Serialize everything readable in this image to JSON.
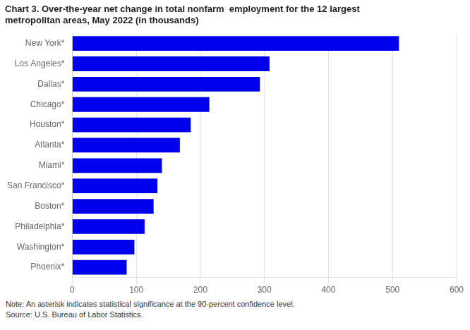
{
  "chart_data": {
    "type": "bar",
    "orientation": "horizontal",
    "title": [
      "Chart 3. Over-the-year net change in total nonfarm  employment for the 12 largest",
      "metropolitan areas, May 2022 (in thousands)"
    ],
    "categories": [
      "Phoenix*",
      "Washington*",
      "Philadelphia*",
      "Boston*",
      "San Francisco*",
      "Miami*",
      "Atlanta*",
      "Houston*",
      "Chicago*",
      "Dallas*",
      "Los Angeles*",
      "New York*"
    ],
    "values": [
      85,
      97,
      113,
      127,
      133,
      140,
      168,
      185,
      214,
      293,
      308,
      510
    ],
    "color": "#0000EE",
    "xlim": [
      0,
      600
    ],
    "xticks": [
      0,
      100,
      200,
      300,
      400,
      500,
      600
    ],
    "grid": true,
    "annotations": [
      "Note: An asterisk indicates statistical significance at the 90-percent confidence level.",
      "Source: U.S. Bureau of Labor Statistics."
    ]
  }
}
